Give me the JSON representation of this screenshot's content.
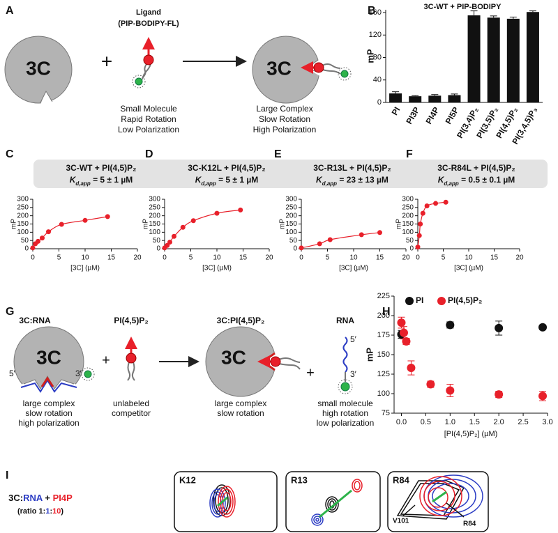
{
  "panel_labels": [
    "A",
    "B",
    "C",
    "D",
    "E",
    "F",
    "G",
    "H",
    "I"
  ],
  "panel_a": {
    "left_label": "3C",
    "plus": "+",
    "ligand_title": [
      "Ligand",
      "(PIP-BODIPY-FL)"
    ],
    "left_caption": [
      "Small Molecule",
      "Rapid Rotation",
      "Low Polarization"
    ],
    "right_label": "3C",
    "right_caption": [
      "Large Complex",
      "Slow Rotation",
      "High Polarization"
    ]
  },
  "panel_g": {
    "complex_title": "3C:RNA",
    "complex_label": "3C",
    "five_prime": "5′",
    "three_prime": "3′",
    "complex_caption": [
      "large complex",
      "slow rotation",
      "high polarization"
    ],
    "plus": [
      "+",
      "+"
    ],
    "competitor_title": "PI(4,5)P₂",
    "competitor_caption": [
      "unlabeled",
      "competitor"
    ],
    "product_title": "3C:PI(4,5)P₂",
    "product_label": "3C",
    "product_caption": [
      "large complex",
      "slow rotation"
    ],
    "rna_title": "RNA",
    "rna_five_prime": "5′",
    "rna_three_prime": "3′",
    "rna_caption": [
      "small molecule",
      "high rotation",
      "low polarization"
    ]
  },
  "panel_i": {
    "legend": [
      "3C:",
      "RNA",
      " + ",
      "PI4P"
    ],
    "ratio": [
      "(ratio 1:",
      "1",
      ":",
      "10",
      ")"
    ],
    "boxes": [
      "K12",
      "R13",
      "R84"
    ],
    "residues": [
      "V101",
      "R84"
    ]
  },
  "chart_data": [
    {
      "type": "bar",
      "title": "3C-WT  +  PIP-BODIPY",
      "ylabel": "mP",
      "categories": [
        "PI",
        "PI3P",
        "PI4P",
        "PI5P",
        "PI(3,4)P₂",
        "PI(3,5)P₂",
        "PI(4,5)P₂",
        "PI(3,4,5)P₃"
      ],
      "values": [
        16,
        11,
        12,
        13,
        155,
        151,
        149,
        161
      ],
      "errors": [
        3,
        1,
        2,
        2,
        8,
        3,
        3,
        2
      ],
      "color": "#111111",
      "ylim": [
        0,
        165
      ],
      "yticks": [
        0,
        40,
        80,
        120,
        160
      ]
    },
    {
      "type": "line",
      "title": "3C-WT  +  PI(4,5)P₂",
      "annotation": {
        "symbol": "K",
        "subscript": "d,app",
        "text": " = 5 ± 1 µM"
      },
      "xlabel": "[3C] (µM)",
      "ylabel": "mP",
      "color": "#e8202a",
      "x": [
        0,
        0.5,
        1,
        1.8,
        3,
        5.5,
        10,
        14.3
      ],
      "values": [
        5,
        30,
        45,
        65,
        103,
        148,
        172,
        195
      ],
      "xlim": [
        0,
        20
      ],
      "xticks": [
        0,
        5,
        10,
        15,
        20
      ],
      "ylim": [
        0,
        300
      ],
      "yticks": [
        0,
        50,
        100,
        150,
        200,
        250,
        300
      ]
    },
    {
      "type": "line",
      "title": "3C-K12L  +  PI(4,5)P₂",
      "annotation": {
        "symbol": "K",
        "subscript": "d,app",
        "text": " = 5 ± 1 µM"
      },
      "xlabel": "[3C] (µM)",
      "ylabel": "mP",
      "color": "#e8202a",
      "x": [
        0,
        0.5,
        1,
        1.8,
        3.5,
        5.5,
        10,
        14.5
      ],
      "values": [
        5,
        20,
        40,
        75,
        130,
        170,
        215,
        235
      ],
      "xlim": [
        0,
        20
      ],
      "xticks": [
        0,
        5,
        10,
        15,
        20
      ],
      "ylim": [
        0,
        300
      ],
      "yticks": [
        0,
        50,
        100,
        150,
        200,
        250,
        300
      ]
    },
    {
      "type": "line",
      "title": "3C-R13L  +  PI(4,5)P₂",
      "annotation": {
        "symbol": "K",
        "subscript": "d,app",
        "text": " = 23 ± 13 µM"
      },
      "xlabel": "[3C] (µM)",
      "ylabel": "mP",
      "color": "#e8202a",
      "x": [
        0,
        3.5,
        5.5,
        11.5,
        15
      ],
      "values": [
        5,
        30,
        55,
        85,
        98
      ],
      "xlim": [
        0,
        20
      ],
      "xticks": [
        0,
        5,
        10,
        15,
        20
      ],
      "ylim": [
        0,
        300
      ],
      "yticks": [
        0,
        50,
        100,
        150,
        200,
        250,
        300
      ]
    },
    {
      "type": "line",
      "title": "3C-R84L  +  PI(4,5)P₂",
      "annotation": {
        "symbol": "K",
        "subscript": "d,app",
        "text": " = 0.5 ± 0.1 µM"
      },
      "xlabel": "[3C] (µM)",
      "ylabel": "mP",
      "color": "#e8202a",
      "x": [
        0,
        0.3,
        0.5,
        1,
        1.8,
        3.5,
        5.5
      ],
      "values": [
        10,
        80,
        150,
        215,
        260,
        275,
        282
      ],
      "xlim": [
        0,
        20
      ],
      "xticks": [
        0,
        5,
        10,
        15,
        20
      ],
      "ylim": [
        0,
        300
      ],
      "yticks": [
        0,
        50,
        100,
        150,
        200,
        250,
        300
      ]
    },
    {
      "type": "scatter",
      "xlabel": "[PI(4,5)P₂] (µM)",
      "ylabel": "mP",
      "series": [
        {
          "name": "PI",
          "color": "#111111",
          "x": [
            0,
            1,
            2,
            2.9
          ],
          "values": [
            176,
            188,
            184,
            185
          ],
          "errors": [
            5,
            4,
            9,
            3
          ]
        },
        {
          "name": "PI(4,5)P₂",
          "color": "#e8202a",
          "x": [
            0,
            0.05,
            0.1,
            0.2,
            0.6,
            1,
            2,
            2.9
          ],
          "values": [
            191,
            178,
            167,
            133,
            112,
            104,
            99,
            97
          ],
          "errors": [
            7,
            8,
            4,
            9,
            4,
            8,
            4,
            6
          ]
        }
      ],
      "xlim": [
        -0.15,
        3
      ],
      "xticks": [
        {
          "value": 0,
          "label": "0.0"
        },
        0.5,
        {
          "value": 1,
          "label": "1.0"
        },
        1.5,
        {
          "value": 2,
          "label": "2.0"
        },
        2.5,
        {
          "value": 3,
          "label": "3.0"
        }
      ],
      "ylim": [
        75,
        225
      ],
      "yticks": [
        75,
        100,
        125,
        150,
        175,
        200,
        225
      ],
      "legend": "top-left"
    }
  ]
}
